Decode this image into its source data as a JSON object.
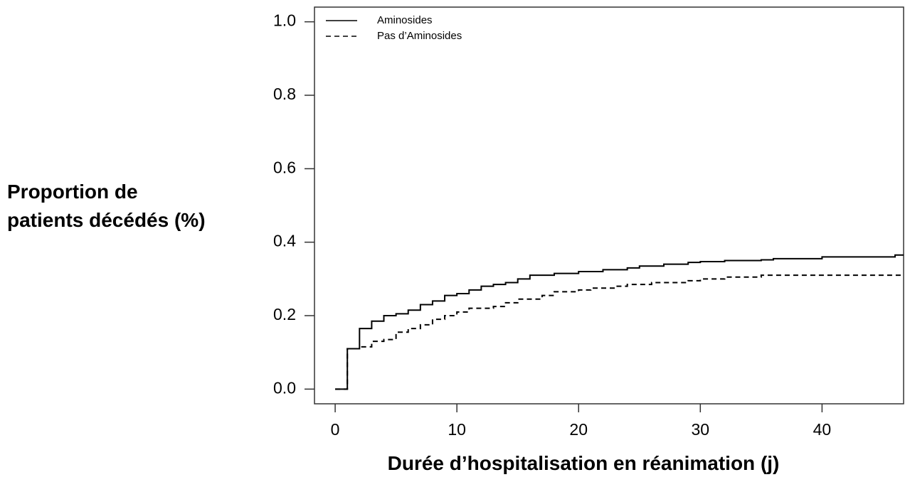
{
  "chart_data": {
    "type": "step",
    "x_label": "Durée d’hospitalisation en réanimation (j)",
    "y_label": "Proportion de patients décédés (%)",
    "xlim": [
      -1.7,
      46.7
    ],
    "ylim": [
      -0.04,
      1.04
    ],
    "xticks": [
      0,
      10,
      20,
      30,
      40
    ],
    "yticks": [
      {
        "value": 0,
        "label": "0.0"
      },
      0.2,
      0.4,
      0.6,
      0.8,
      {
        "value": 1,
        "label": "1.0"
      }
    ],
    "legend": "top-left",
    "series": [
      {
        "name": "Aminosides",
        "color": "#000000",
        "dash": "solid",
        "x": [
          0,
          1,
          2,
          3,
          4,
          5,
          6,
          7,
          8,
          9,
          10,
          11,
          12,
          13,
          14,
          15,
          16,
          18,
          20,
          22,
          24,
          25,
          27,
          29,
          30,
          32,
          35,
          36,
          40,
          46,
          46.7
        ],
        "values": [
          0,
          0.11,
          0.165,
          0.185,
          0.2,
          0.205,
          0.215,
          0.23,
          0.24,
          0.255,
          0.26,
          0.27,
          0.28,
          0.285,
          0.29,
          0.3,
          0.31,
          0.315,
          0.32,
          0.325,
          0.33,
          0.335,
          0.34,
          0.345,
          0.347,
          0.35,
          0.352,
          0.355,
          0.36,
          0.365,
          0.365
        ]
      },
      {
        "name": "Pas d’Aminosides",
        "color": "#000000",
        "dash": "dashed",
        "x": [
          0,
          1,
          2,
          3,
          4,
          5,
          6,
          7,
          8,
          9,
          10,
          11,
          13,
          14,
          15,
          17,
          18,
          20,
          21,
          23,
          24,
          26,
          29,
          30,
          32,
          35,
          46.7
        ],
        "values": [
          0,
          0.11,
          0.115,
          0.13,
          0.135,
          0.155,
          0.165,
          0.175,
          0.19,
          0.2,
          0.21,
          0.22,
          0.225,
          0.235,
          0.245,
          0.255,
          0.265,
          0.27,
          0.275,
          0.28,
          0.285,
          0.29,
          0.295,
          0.3,
          0.305,
          0.31,
          0.31
        ]
      }
    ]
  }
}
